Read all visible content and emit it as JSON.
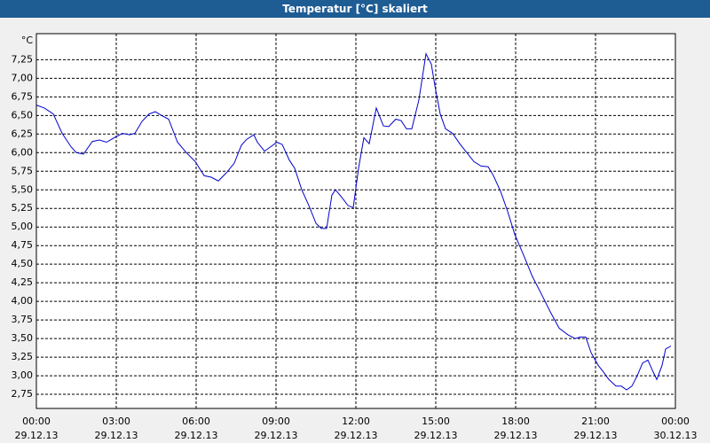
{
  "chart_data": {
    "type": "line",
    "title": "Temperatur [°C] skaliert",
    "y_unit": "°C",
    "color": "#0000cc",
    "grid": true,
    "x": [
      0,
      0.3,
      0.633,
      0.967,
      1.3,
      1.5,
      1.767,
      2.1,
      2.367,
      2.633,
      2.967,
      3.233,
      3.5,
      3.7,
      3.967,
      4.233,
      4.467,
      4.7,
      4.967,
      5.3,
      5.633,
      5.967,
      6.3,
      6.567,
      6.833,
      7.167,
      7.433,
      7.7,
      7.9,
      8.167,
      8.3,
      8.567,
      8.767,
      9.033,
      9.233,
      9.5,
      9.7,
      9.967,
      10.233,
      10.5,
      10.7,
      10.9,
      11.1,
      11.233,
      11.467,
      11.7,
      11.9,
      12.1,
      12.3,
      12.5,
      12.767,
      13.033,
      13.233,
      13.5,
      13.7,
      13.9,
      14.1,
      14.367,
      14.633,
      14.833,
      14.967,
      15.167,
      15.367,
      15.633,
      15.9,
      16.167,
      16.433,
      16.7,
      16.967,
      17.167,
      17.433,
      17.7,
      17.967,
      18.3,
      18.633,
      18.967,
      19.3,
      19.633,
      19.967,
      20.233,
      20.433,
      20.633,
      20.833,
      21.1,
      21.3,
      21.5,
      21.767,
      21.967,
      22.167,
      22.367,
      22.567,
      22.767,
      22.967,
      23.167,
      23.3,
      23.5,
      23.633,
      23.833
    ],
    "values": [
      6.64,
      6.6,
      6.52,
      6.26,
      6.08,
      6.0,
      5.98,
      6.15,
      6.17,
      6.14,
      6.21,
      6.26,
      6.24,
      6.26,
      6.42,
      6.52,
      6.55,
      6.5,
      6.45,
      6.14,
      6.0,
      5.88,
      5.69,
      5.67,
      5.62,
      5.74,
      5.86,
      6.1,
      6.18,
      6.24,
      6.14,
      6.02,
      6.07,
      6.14,
      6.11,
      5.9,
      5.79,
      5.5,
      5.29,
      5.05,
      4.98,
      4.98,
      5.43,
      5.5,
      5.4,
      5.29,
      5.26,
      5.79,
      6.2,
      6.12,
      6.6,
      6.36,
      6.35,
      6.45,
      6.43,
      6.32,
      6.32,
      6.71,
      7.33,
      7.19,
      6.9,
      6.52,
      6.32,
      6.26,
      6.12,
      6.0,
      5.88,
      5.82,
      5.81,
      5.69,
      5.48,
      5.21,
      4.9,
      4.62,
      4.33,
      4.1,
      3.86,
      3.64,
      3.55,
      3.5,
      3.52,
      3.52,
      3.31,
      3.14,
      3.05,
      2.95,
      2.86,
      2.86,
      2.81,
      2.86,
      3.0,
      3.17,
      3.21,
      3.05,
      2.95,
      3.14,
      3.36,
      3.4
    ],
    "xlim": [
      0,
      24
    ],
    "xticks": [
      {
        "value": 0,
        "label": "00:00\n29.12.13"
      },
      {
        "value": 3,
        "label": "03:00\n29.12.13"
      },
      {
        "value": 6,
        "label": "06:00\n29.12.13"
      },
      {
        "value": 9,
        "label": "09:00\n29.12.13"
      },
      {
        "value": 12,
        "label": "12:00\n29.12.13"
      },
      {
        "value": 15,
        "label": "15:00\n29.12.13"
      },
      {
        "value": 18,
        "label": "18:00\n29.12.13"
      },
      {
        "value": 21,
        "label": "21:00\n29.12.13"
      },
      {
        "value": 24,
        "label": "00:00\n30.12.13"
      }
    ],
    "ylim": [
      2.56,
      7.6
    ],
    "yticks": [
      {
        "value": 2.75,
        "label": "2,75"
      },
      {
        "value": 3,
        "label": "3,00"
      },
      {
        "value": 3.25,
        "label": "3,25"
      },
      {
        "value": 3.5,
        "label": "3,50"
      },
      {
        "value": 3.75,
        "label": "3,75"
      },
      {
        "value": 4,
        "label": "4,00"
      },
      {
        "value": 4.25,
        "label": "4,25"
      },
      {
        "value": 4.5,
        "label": "4,50"
      },
      {
        "value": 4.75,
        "label": "4,75"
      },
      {
        "value": 5,
        "label": "5,00"
      },
      {
        "value": 5.25,
        "label": "5,25"
      },
      {
        "value": 5.5,
        "label": "5,50"
      },
      {
        "value": 5.75,
        "label": "5,75"
      },
      {
        "value": 6,
        "label": "6,00"
      },
      {
        "value": 6.25,
        "label": "6,25"
      },
      {
        "value": 6.5,
        "label": "6,50"
      },
      {
        "value": 6.75,
        "label": "6,75"
      },
      {
        "value": 7,
        "label": "7,00"
      },
      {
        "value": 7.25,
        "label": "7,25"
      }
    ]
  }
}
